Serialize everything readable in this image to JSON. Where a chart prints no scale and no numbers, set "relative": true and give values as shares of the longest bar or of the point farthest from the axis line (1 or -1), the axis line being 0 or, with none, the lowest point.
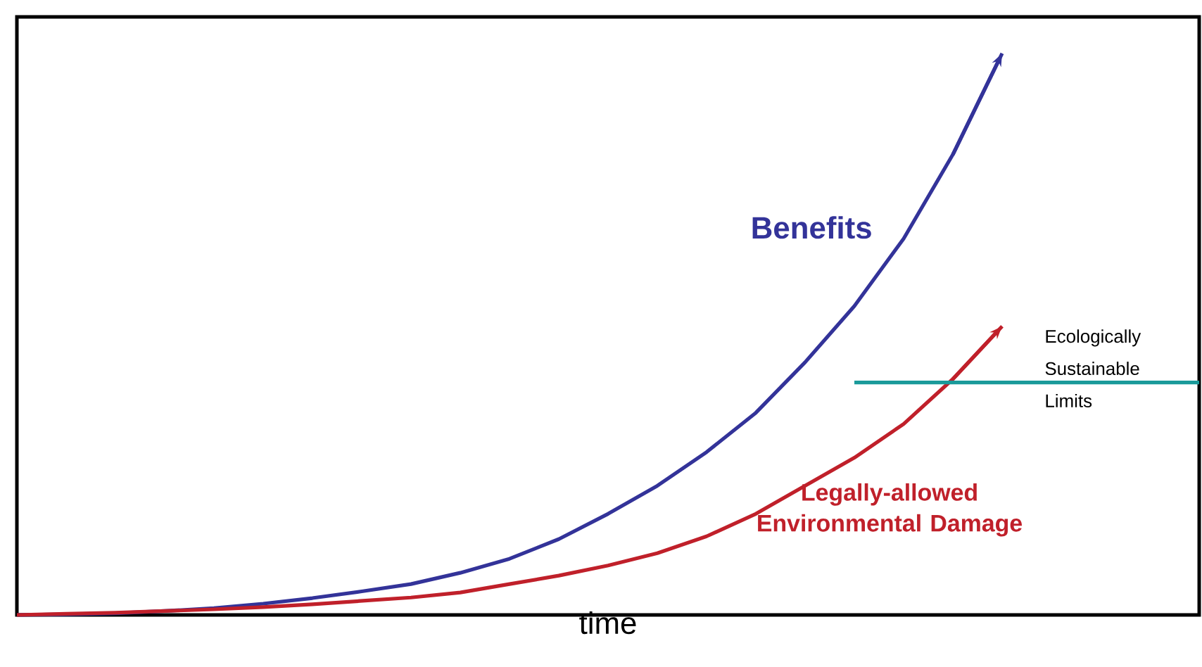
{
  "chart_data": {
    "type": "line",
    "xlabel": "time",
    "relative": true,
    "tick_labels": false,
    "categories": [
      null,
      null,
      null,
      null,
      null,
      null,
      null,
      null,
      null,
      null,
      null,
      null,
      null,
      null,
      null,
      null,
      null,
      null,
      null,
      null,
      null,
      null,
      null,
      null,
      null
    ],
    "series": [
      {
        "name": "Benefits",
        "color": "#333399",
        "values": [
          0,
          0.001,
          0.003,
          0.007,
          0.012,
          0.02,
          0.03,
          0.042,
          0.055,
          0.075,
          0.1,
          0.135,
          0.18,
          0.23,
          0.29,
          0.36,
          0.45,
          0.55,
          0.67,
          0.82,
          1,
          null,
          null,
          null,
          null
        ]
      },
      {
        "name": "Legally-allowed Environmental Damage",
        "color": "#c0202a",
        "values": [
          0,
          0.002,
          0.004,
          0.007,
          0.01,
          0.014,
          0.019,
          0.025,
          0.031,
          0.04,
          0.055,
          0.07,
          0.088,
          0.11,
          0.14,
          0.18,
          0.23,
          0.28,
          0.34,
          0.42,
          0.514,
          null,
          null,
          null,
          null
        ]
      },
      {
        "name": "Ecologically Sustainable Limits",
        "color": "#1a9a9a",
        "values": [
          null,
          null,
          null,
          null,
          null,
          null,
          null,
          null,
          null,
          null,
          null,
          null,
          null,
          null,
          null,
          null,
          null,
          0.414,
          0.414,
          0.414,
          0.414,
          0.414,
          0.414,
          0.414,
          0.414
        ]
      }
    ]
  }
}
